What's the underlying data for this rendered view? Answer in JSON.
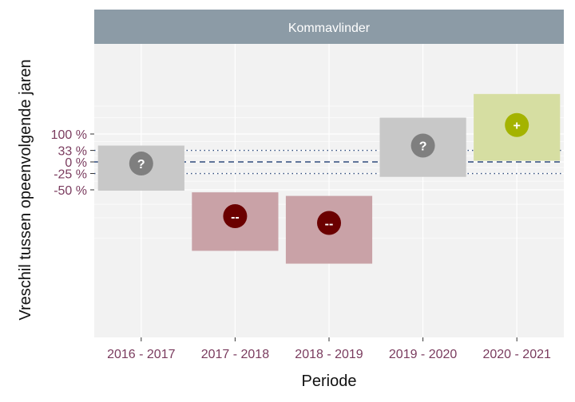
{
  "chart_data": {
    "type": "interval",
    "panel_title": "Kommavlinder",
    "xlabel": "Periode",
    "ylabel": "Vreschil tussen opeenvolgende jaren",
    "categories": [
      "2016 - 2017",
      "2017 - 2018",
      "2018 - 2019",
      "2019 - 2020",
      "2020 - 2021"
    ],
    "y_ticks": [
      {
        "label": "100 %",
        "value": 100
      },
      {
        "label": "33 %",
        "value": 33
      },
      {
        "label": "0 %",
        "value": 0
      },
      {
        "label": "-25 %",
        "value": -25
      },
      {
        "label": "-50 %",
        "value": -50
      }
    ],
    "y_scale": "log-ratio",
    "reference_lines": [
      {
        "value": 0,
        "style": "dashed",
        "color": "#2f4b7c"
      },
      {
        "value": 33,
        "style": "dotted",
        "color": "#2f4b7c"
      },
      {
        "value": -25,
        "style": "dotted",
        "color": "#2f4b7c"
      }
    ],
    "series": [
      {
        "category": "2016 - 2017",
        "estimate": -4,
        "lower": -51,
        "upper": 50,
        "symbol": "?",
        "fill": "#c8c8c8",
        "point_color": "#7f7f7f"
      },
      {
        "category": "2017 - 2018",
        "estimate": -74,
        "lower": -89,
        "upper": -53,
        "symbol": "--",
        "fill": "#c9a2a7",
        "point_color": "#6b0000"
      },
      {
        "category": "2018 - 2019",
        "estimate": -78,
        "lower": -92,
        "upper": -57,
        "symbol": "--",
        "fill": "#c9a2a7",
        "point_color": "#6b0000"
      },
      {
        "category": "2019 - 2020",
        "estimate": 50,
        "lower": -31,
        "upper": 200,
        "symbol": "?",
        "fill": "#c8c8c8",
        "point_color": "#7f7f7f"
      },
      {
        "category": "2020 - 2021",
        "estimate": 150,
        "lower": 3,
        "upper": 440,
        "symbol": "+",
        "fill": "#d6dea2",
        "point_color": "#a4b300"
      }
    ],
    "colors": {
      "panel_background": "#f2f2f2",
      "strip_background": "#8c9ba6",
      "gridline": "#ffffff"
    },
    "grid": true
  }
}
